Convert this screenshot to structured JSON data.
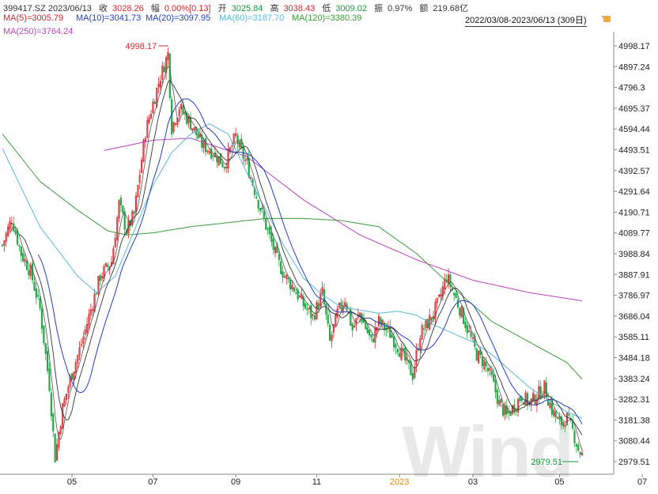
{
  "header": {
    "code_date": "399417.SZ 2023/06/13",
    "close_label": "收",
    "close_value": "3028.26",
    "change_label": "幅",
    "change_value": "0.00%[0.13]",
    "open_label": "开",
    "open_value": "3025.84",
    "high_label": "高",
    "high_value": "3038.43",
    "low_label": "低",
    "low_value": "3009.02",
    "amplitude_label": "振",
    "amplitude_value": "0.97%",
    "amount_label": "额",
    "amount_value": "219.68亿"
  },
  "ma_labels": [
    {
      "text": "MA(5)=3005.79",
      "color": "#d6262b"
    },
    {
      "text": "MA(10)=3041.73",
      "color": "#1f3fbf"
    },
    {
      "text": "MA(20)=3097.95",
      "color": "#1f3fbf"
    },
    {
      "text": "MA(60)=3187.70",
      "color": "#5ab8d8"
    },
    {
      "text": "MA(120)=3380.39",
      "color": "#3a9a3a"
    },
    {
      "text": "MA(250)=3764.24",
      "color": "#c040c0"
    }
  ],
  "range_text": "2022/03/08-2023/06/13 (309日)",
  "watermark": "Wind",
  "chart_data": {
    "type": "candlestick",
    "y_ticks": [
      "4998.17",
      "4897.24",
      "4796.3",
      "4695.37",
      "4594.44",
      "4493.51",
      "4392.57",
      "4291.64",
      "4190.71",
      "4089.77",
      "3988.84",
      "3887.91",
      "3786.97",
      "3686.04",
      "3585.11",
      "3484.18",
      "3383.24",
      "3282.31",
      "3181.38",
      "3080.44",
      "2979.51"
    ],
    "ylim": [
      2979.51,
      4998.17
    ],
    "x_ticks": [
      "05",
      "07",
      "09",
      "11",
      "2023",
      "03",
      "05",
      "07"
    ],
    "max_label": "4998.17",
    "min_label": "2979.51",
    "colors": {
      "up": "#d6262b",
      "down": "#22a845",
      "ma5": "#555555",
      "ma10": "#333333",
      "ma20": "#1f3fbf",
      "ma60": "#5ab8d8",
      "ma120": "#3a9a3a",
      "ma250": "#c040c0"
    },
    "anchors": [
      [
        0,
        4030
      ],
      [
        5,
        4160
      ],
      [
        10,
        3990
      ],
      [
        15,
        3900
      ],
      [
        20,
        3720
      ],
      [
        25,
        3350
      ],
      [
        28,
        3000
      ],
      [
        32,
        3240
      ],
      [
        36,
        3380
      ],
      [
        42,
        3550
      ],
      [
        48,
        3750
      ],
      [
        52,
        3880
      ],
      [
        58,
        3950
      ],
      [
        62,
        4230
      ],
      [
        66,
        4100
      ],
      [
        70,
        4180
      ],
      [
        76,
        4580
      ],
      [
        80,
        4720
      ],
      [
        84,
        4850
      ],
      [
        88,
        4960
      ],
      [
        90,
        4600
      ],
      [
        94,
        4700
      ],
      [
        100,
        4620
      ],
      [
        106,
        4520
      ],
      [
        112,
        4480
      ],
      [
        118,
        4420
      ],
      [
        124,
        4560
      ],
      [
        126,
        4500
      ],
      [
        130,
        4420
      ],
      [
        134,
        4300
      ],
      [
        138,
        4180
      ],
      [
        142,
        4070
      ],
      [
        146,
        3960
      ],
      [
        150,
        3880
      ],
      [
        155,
        3820
      ],
      [
        160,
        3740
      ],
      [
        165,
        3680
      ],
      [
        170,
        3800
      ],
      [
        174,
        3560
      ],
      [
        178,
        3700
      ],
      [
        182,
        3770
      ],
      [
        186,
        3620
      ],
      [
        190,
        3700
      ],
      [
        196,
        3560
      ],
      [
        200,
        3660
      ],
      [
        206,
        3600
      ],
      [
        210,
        3540
      ],
      [
        214,
        3470
      ],
      [
        218,
        3400
      ],
      [
        222,
        3600
      ],
      [
        228,
        3680
      ],
      [
        232,
        3760
      ],
      [
        236,
        3880
      ],
      [
        240,
        3790
      ],
      [
        244,
        3700
      ],
      [
        248,
        3600
      ],
      [
        252,
        3500
      ],
      [
        256,
        3460
      ],
      [
        260,
        3380
      ],
      [
        264,
        3260
      ],
      [
        268,
        3200
      ],
      [
        272,
        3250
      ],
      [
        276,
        3300
      ],
      [
        280,
        3260
      ],
      [
        284,
        3300
      ],
      [
        288,
        3340
      ],
      [
        292,
        3230
      ],
      [
        296,
        3160
      ],
      [
        300,
        3190
      ],
      [
        303,
        3130
      ],
      [
        306,
        3040
      ],
      [
        308,
        3010
      ]
    ],
    "ma250_anchors": [
      [
        54,
        4490
      ],
      [
        80,
        4540
      ],
      [
        100,
        4550
      ],
      [
        130,
        4460
      ],
      [
        160,
        4250
      ],
      [
        190,
        4080
      ],
      [
        220,
        3960
      ],
      [
        250,
        3860
      ],
      [
        280,
        3800
      ],
      [
        308,
        3760
      ]
    ],
    "ma120_anchors": [
      [
        0,
        4570
      ],
      [
        20,
        4340
      ],
      [
        40,
        4200
      ],
      [
        56,
        4100
      ],
      [
        66,
        4080
      ],
      [
        80,
        4090
      ],
      [
        100,
        4120
      ],
      [
        120,
        4140
      ],
      [
        140,
        4160
      ],
      [
        160,
        4160
      ],
      [
        180,
        4150
      ],
      [
        200,
        4120
      ],
      [
        220,
        3990
      ],
      [
        240,
        3820
      ],
      [
        260,
        3660
      ],
      [
        280,
        3560
      ],
      [
        300,
        3460
      ],
      [
        308,
        3380
      ]
    ],
    "ma60_anchors": [
      [
        0,
        4500
      ],
      [
        20,
        4120
      ],
      [
        40,
        3880
      ],
      [
        50,
        3800
      ],
      [
        60,
        3880
      ],
      [
        70,
        4100
      ],
      [
        80,
        4320
      ],
      [
        90,
        4480
      ],
      [
        100,
        4570
      ],
      [
        110,
        4620
      ],
      [
        120,
        4570
      ],
      [
        130,
        4380
      ],
      [
        140,
        4200
      ],
      [
        150,
        4020
      ],
      [
        160,
        3870
      ],
      [
        170,
        3790
      ],
      [
        180,
        3730
      ],
      [
        200,
        3700
      ],
      [
        210,
        3710
      ],
      [
        220,
        3690
      ],
      [
        230,
        3640
      ],
      [
        240,
        3600
      ],
      [
        250,
        3560
      ],
      [
        260,
        3500
      ],
      [
        270,
        3420
      ],
      [
        280,
        3340
      ],
      [
        290,
        3280
      ],
      [
        300,
        3220
      ],
      [
        308,
        3190
      ]
    ]
  }
}
